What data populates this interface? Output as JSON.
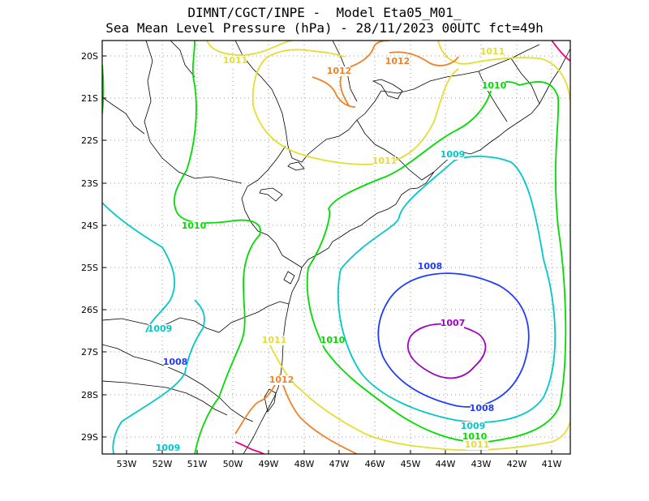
{
  "title": {
    "line1": "DIMNT/CGCT/INPE -  Model Eta05_M01_",
    "line2": "Sea Mean Level Pressure (hPa) - 28/11/2023 00UTC fct=49h"
  },
  "map": {
    "lat_ticks": [
      "20S",
      "21S",
      "22S",
      "23S",
      "24S",
      "25S",
      "26S",
      "27S",
      "28S",
      "29S"
    ],
    "lon_ticks": [
      "53W",
      "52W",
      "51W",
      "50W",
      "49W",
      "48W",
      "47W",
      "46W",
      "45W",
      "44W",
      "43W",
      "42W",
      "41W"
    ],
    "colors": {
      "1007": "#a000c8",
      "1008": "#1e3cff",
      "1009": "#00c8c8",
      "1010": "#00dc00",
      "1011": "#e6dc32",
      "1012": "#f08228",
      "1013": "#f00082",
      "border": "#000000",
      "grid": "#9a9a9a"
    },
    "contour_labels": [
      {
        "text": "1011",
        "level": "1011"
      },
      {
        "text": "1012",
        "level": "1012"
      },
      {
        "text": "1012",
        "level": "1012"
      },
      {
        "text": "1011",
        "level": "1011"
      },
      {
        "text": "1010",
        "level": "1010"
      },
      {
        "text": "1009",
        "level": "1009"
      },
      {
        "text": "1011",
        "level": "1011"
      },
      {
        "text": "1010",
        "level": "1010"
      },
      {
        "text": "1008",
        "level": "1008"
      },
      {
        "text": "1007",
        "level": "1007"
      },
      {
        "text": "1009",
        "level": "1009"
      },
      {
        "text": "1008",
        "level": "1008"
      },
      {
        "text": "1011",
        "level": "1011"
      },
      {
        "text": "1010",
        "level": "1010"
      },
      {
        "text": "1012",
        "level": "1012"
      },
      {
        "text": "1008",
        "level": "1008"
      },
      {
        "text": "1009",
        "level": "1009"
      },
      {
        "text": "1010",
        "level": "1010"
      },
      {
        "text": "1011",
        "level": "1011"
      },
      {
        "text": "1009",
        "level": "1009"
      }
    ]
  }
}
